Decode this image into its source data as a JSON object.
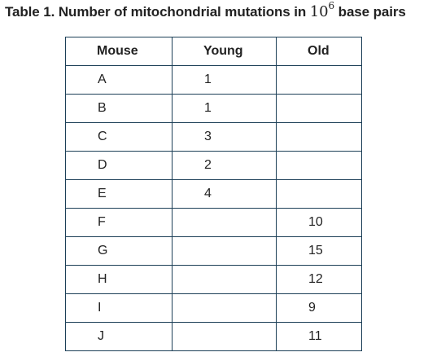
{
  "caption": {
    "prefix": "Table 1. Number of mitochondrial mutations in ",
    "base": "10",
    "exponent": "6",
    "suffix": " base pairs"
  },
  "table": {
    "headers": [
      "Mouse",
      "Young",
      "Old"
    ],
    "rows": [
      [
        "A",
        "1",
        ""
      ],
      [
        "B",
        "1",
        ""
      ],
      [
        "C",
        "3",
        ""
      ],
      [
        "D",
        "2",
        ""
      ],
      [
        "E",
        "4",
        ""
      ],
      [
        "F",
        "",
        "10"
      ],
      [
        "G",
        "",
        "15"
      ],
      [
        "H",
        "",
        "12"
      ],
      [
        "I",
        "",
        "9"
      ],
      [
        "J",
        "",
        "11"
      ]
    ]
  }
}
